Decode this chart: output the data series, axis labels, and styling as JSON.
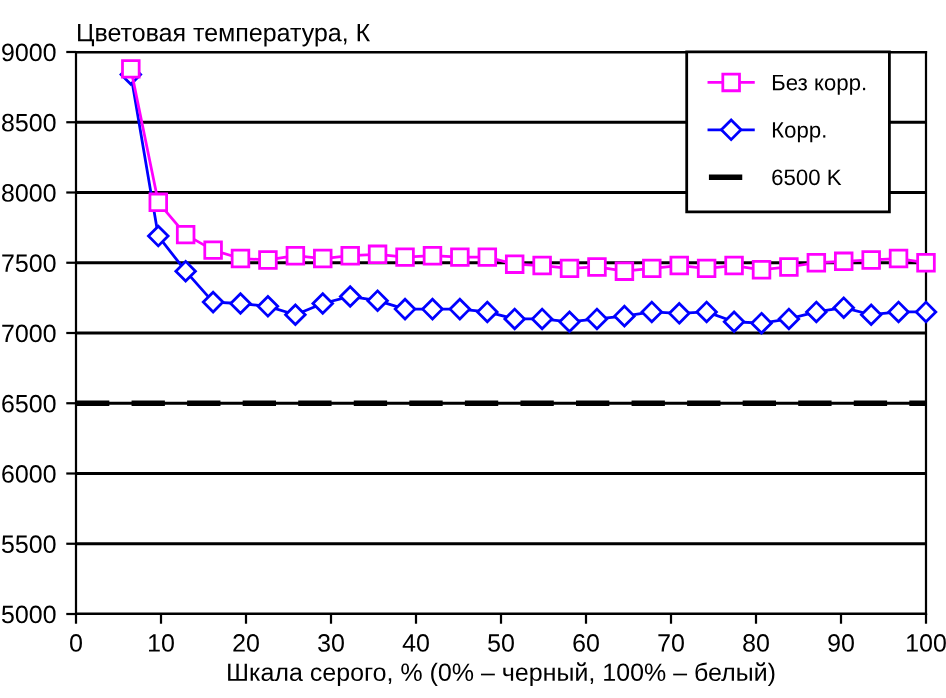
{
  "chart_data": {
    "type": "line",
    "ylabel": "Цветовая температура, К",
    "xlabel": "Шкала серого, % (0% – черный, 100% – белый)",
    "x": [
      6.45,
      9.68,
      12.9,
      16.13,
      19.35,
      22.58,
      25.81,
      29.03,
      32.26,
      35.48,
      38.71,
      41.94,
      45.16,
      48.39,
      51.61,
      54.84,
      58.06,
      61.29,
      64.52,
      67.74,
      70.97,
      74.19,
      77.42,
      80.65,
      83.87,
      87.1,
      90.32,
      93.55,
      96.77,
      100
    ],
    "series": [
      {
        "name": "Без корр.",
        "color": "#ff00ff",
        "marker": "square",
        "values": [
          8880,
          7930,
          7700,
          7590,
          7530,
          7520,
          7550,
          7530,
          7550,
          7560,
          7540,
          7550,
          7540,
          7540,
          7490,
          7480,
          7460,
          7470,
          7440,
          7460,
          7480,
          7460,
          7480,
          7450,
          7470,
          7500,
          7510,
          7520,
          7530,
          7500
        ]
      },
      {
        "name": "Корр.",
        "color": "#0000ff",
        "marker": "diamond",
        "values": [
          8840,
          7690,
          7440,
          7220,
          7210,
          7190,
          7130,
          7210,
          7260,
          7230,
          7170,
          7170,
          7170,
          7150,
          7100,
          7100,
          7080,
          7100,
          7120,
          7150,
          7140,
          7150,
          7080,
          7070,
          7100,
          7150,
          7180,
          7130,
          7150,
          7150
        ]
      }
    ],
    "ref_lines": [
      {
        "axis": "y",
        "value": 6500,
        "label": "6500 K",
        "color": "#000000",
        "line_style": "dashed"
      }
    ],
    "xlim": [
      0,
      100
    ],
    "xticks": [
      0,
      10,
      20,
      30,
      40,
      50,
      60,
      70,
      80,
      90,
      100
    ],
    "ylim": [
      5000,
      9000
    ],
    "yticks": [
      5000,
      5500,
      6000,
      6500,
      7000,
      7500,
      8000,
      8500,
      9000
    ],
    "grid": "y",
    "legend": "top right",
    "line_style": "solid"
  }
}
